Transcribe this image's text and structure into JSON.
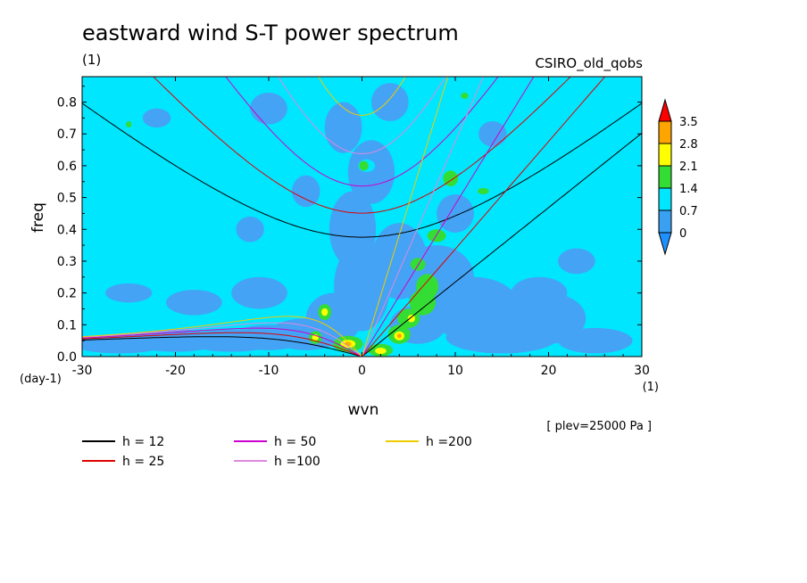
{
  "chart_data": {
    "type": "heatmap",
    "title": "eastward wind S-T power spectrum",
    "units_left": "(1)",
    "model_name": "CSIRO_old_qobs",
    "xlabel": "wvn",
    "ylabel": "freq",
    "y_unit_label": "(day-1)",
    "x_unit_label": "(1)",
    "plev_note": "[ plev=25000 Pa ]",
    "xlim": [
      -30,
      30
    ],
    "ylim": [
      0,
      0.88
    ],
    "x_ticks": [
      -30,
      -20,
      -10,
      0,
      10,
      20,
      30
    ],
    "x_tick_labels": [
      "-30",
      "-20",
      "-10",
      "0",
      "10",
      "20",
      "30"
    ],
    "y_ticks": [
      0,
      0.1,
      0.2,
      0.3,
      0.4,
      0.5,
      0.6,
      0.7,
      0.8
    ],
    "y_tick_labels": [
      "0.0",
      "0.1",
      "0.2",
      "0.3",
      "0.4",
      "0.5",
      "0.6",
      "0.7",
      "0.8"
    ],
    "colorbar": {
      "levels": [
        "0",
        "0.7",
        "1.4",
        "2.1",
        "2.8",
        "3.5"
      ],
      "colors": [
        "#1e90ff",
        "#3aa0f2",
        "#00e6ff",
        "#33dd33",
        "#ffff00",
        "#ffa500",
        "#ff0000"
      ]
    },
    "field_colors": {
      "low": "#44a3f5",
      "mid": "#00e6ff",
      "high": "#33dd33",
      "higher": "#ffff00",
      "peak": "#ffa500"
    },
    "dispersion_curves": [
      {
        "label": "h = 12",
        "h": 12,
        "color": "#000000"
      },
      {
        "label": "h = 25",
        "h": 25,
        "color": "#dd0000"
      },
      {
        "label": "h = 50",
        "h": 50,
        "color": "#cc00cc"
      },
      {
        "label": "h =100",
        "h": 100,
        "color": "#dd88dd"
      },
      {
        "label": "h =200",
        "h": 200,
        "color": "#eecc00"
      }
    ],
    "grid": false,
    "legend_placement": "bottom-left"
  }
}
